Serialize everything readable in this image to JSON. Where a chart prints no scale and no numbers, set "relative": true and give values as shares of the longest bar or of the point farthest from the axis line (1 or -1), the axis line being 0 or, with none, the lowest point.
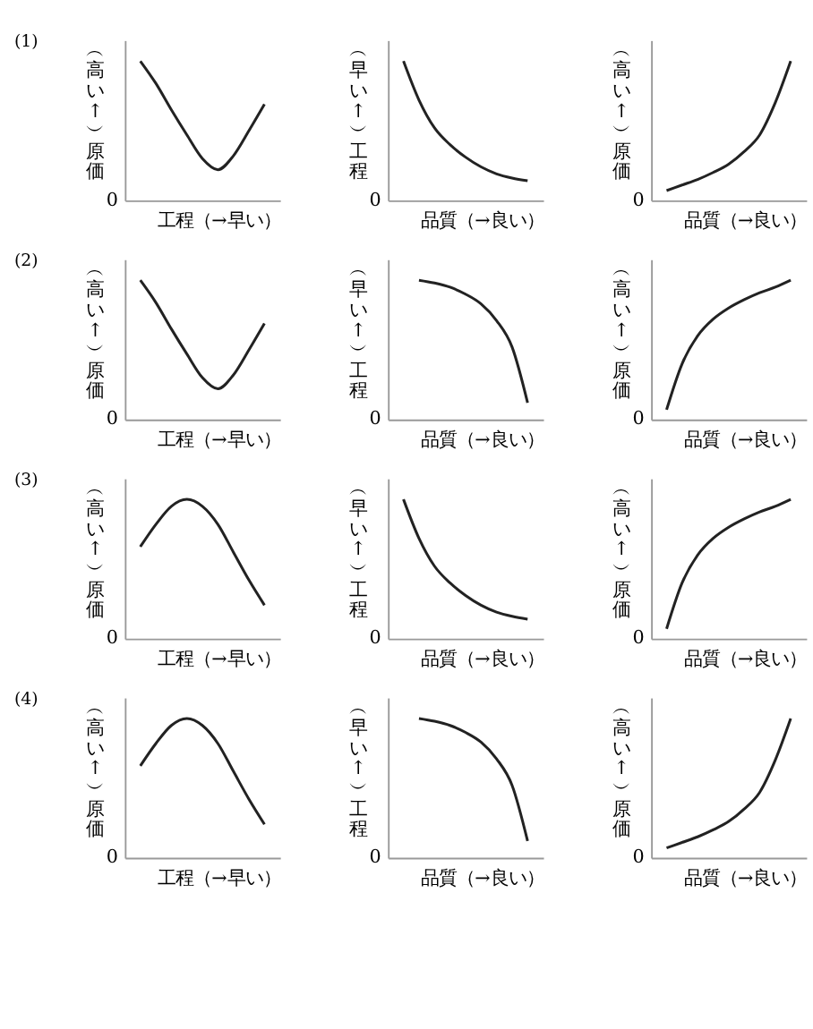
{
  "chart_data": [
    {
      "type": "line",
      "title": "(1)",
      "relative": true,
      "xlabel": "工程（→早い）",
      "ylabel": "︵高い↑︶原価",
      "categories": [
        null,
        null,
        null,
        null,
        null,
        null,
        null,
        null,
        null,
        null,
        null
      ],
      "values": [
        null,
        1,
        0.84,
        0.65,
        0.47,
        0.3,
        0.22,
        0.32,
        0.5,
        0.69,
        null
      ],
      "color": "#222222",
      "annotations": [
        "0"
      ]
    },
    {
      "type": "line",
      "relative": true,
      "xlabel": "品質（→良い）",
      "ylabel": "︵早い↑︶工程",
      "categories": [
        null,
        null,
        null,
        null,
        null,
        null,
        null,
        null,
        null,
        null,
        null
      ],
      "values": [
        null,
        1,
        0.72,
        0.52,
        0.4,
        0.31,
        0.24,
        0.19,
        0.16,
        0.14,
        null
      ],
      "color": "#222222",
      "annotations": [
        "0"
      ]
    },
    {
      "type": "line",
      "relative": true,
      "xlabel": "品質（→良い）",
      "ylabel": "︵高い↑︶原価",
      "categories": [
        null,
        null,
        null,
        null,
        null,
        null,
        null,
        null,
        null,
        null,
        null
      ],
      "values": [
        null,
        0.07,
        0.11,
        0.15,
        0.2,
        0.26,
        0.35,
        0.47,
        0.7,
        1,
        null
      ],
      "color": "#222222",
      "annotations": [
        "0"
      ]
    },
    {
      "type": "line",
      "title": "(2)",
      "relative": true,
      "xlabel": "工程（→早い）",
      "ylabel": "︵高い↑︶原価",
      "categories": [
        null,
        null,
        null,
        null,
        null,
        null,
        null,
        null,
        null,
        null,
        null
      ],
      "values": [
        null,
        1,
        0.84,
        0.65,
        0.47,
        0.3,
        0.22,
        0.32,
        0.5,
        0.69,
        null
      ],
      "color": "#222222",
      "annotations": [
        "0"
      ]
    },
    {
      "type": "line",
      "relative": true,
      "xlabel": "品質（→良い）",
      "ylabel": "︵早い↑︶工程",
      "categories": [
        null,
        null,
        null,
        null,
        null,
        null,
        null,
        null,
        null,
        null,
        null
      ],
      "values": [
        null,
        null,
        1,
        0.98,
        0.95,
        0.9,
        0.83,
        0.71,
        0.52,
        0.12,
        null
      ],
      "color": "#222222",
      "annotations": [
        "0"
      ]
    },
    {
      "type": "line",
      "relative": true,
      "xlabel": "品質（→良い）",
      "ylabel": "︵高い↑︶原価",
      "categories": [
        null,
        null,
        null,
        null,
        null,
        null,
        null,
        null,
        null,
        null,
        null
      ],
      "values": [
        null,
        0.07,
        0.4,
        0.6,
        0.72,
        0.8,
        0.86,
        0.91,
        0.95,
        1,
        null
      ],
      "color": "#222222",
      "annotations": [
        "0"
      ]
    },
    {
      "type": "line",
      "title": "(3)",
      "relative": true,
      "xlabel": "工程（→早い）",
      "ylabel": "︵高い↑︶原価",
      "categories": [
        null,
        null,
        null,
        null,
        null,
        null,
        null,
        null,
        null,
        null,
        null
      ],
      "values": [
        null,
        0.66,
        0.82,
        0.95,
        1,
        0.95,
        0.82,
        0.62,
        0.42,
        0.24,
        null
      ],
      "color": "#222222",
      "annotations": [
        "0"
      ]
    },
    {
      "type": "line",
      "relative": true,
      "xlabel": "品質（→良い）",
      "ylabel": "︵早い↑︶工程",
      "categories": [
        null,
        null,
        null,
        null,
        null,
        null,
        null,
        null,
        null,
        null,
        null
      ],
      "values": [
        null,
        1,
        0.72,
        0.52,
        0.4,
        0.31,
        0.24,
        0.19,
        0.16,
        0.14,
        null
      ],
      "color": "#222222",
      "annotations": [
        "0"
      ]
    },
    {
      "type": "line",
      "relative": true,
      "xlabel": "品質（→良い）",
      "ylabel": "︵高い↑︶原価",
      "categories": [
        null,
        null,
        null,
        null,
        null,
        null,
        null,
        null,
        null,
        null,
        null
      ],
      "values": [
        null,
        0.07,
        0.4,
        0.6,
        0.72,
        0.8,
        0.86,
        0.91,
        0.95,
        1,
        null
      ],
      "color": "#222222",
      "annotations": [
        "0"
      ]
    },
    {
      "type": "line",
      "title": "(4)",
      "relative": true,
      "xlabel": "工程（→早い）",
      "ylabel": "︵高い↑︶原価",
      "categories": [
        null,
        null,
        null,
        null,
        null,
        null,
        null,
        null,
        null,
        null,
        null
      ],
      "values": [
        null,
        0.66,
        0.82,
        0.95,
        1,
        0.95,
        0.82,
        0.62,
        0.42,
        0.24,
        null
      ],
      "color": "#222222",
      "annotations": [
        "0"
      ]
    },
    {
      "type": "line",
      "relative": true,
      "xlabel": "品質（→良い）",
      "ylabel": "︵早い↑︶工程",
      "categories": [
        null,
        null,
        null,
        null,
        null,
        null,
        null,
        null,
        null,
        null,
        null
      ],
      "values": [
        null,
        null,
        1,
        0.98,
        0.95,
        0.9,
        0.83,
        0.71,
        0.52,
        0.12,
        null
      ],
      "color": "#222222",
      "annotations": [
        "0"
      ]
    },
    {
      "type": "line",
      "relative": true,
      "xlabel": "品質（→良い）",
      "ylabel": "︵高い↑︶原価",
      "categories": [
        null,
        null,
        null,
        null,
        null,
        null,
        null,
        null,
        null,
        null,
        null
      ],
      "values": [
        null,
        0.07,
        0.11,
        0.15,
        0.2,
        0.26,
        0.35,
        0.47,
        0.7,
        1,
        null
      ],
      "color": "#222222",
      "annotations": [
        "0"
      ]
    }
  ]
}
